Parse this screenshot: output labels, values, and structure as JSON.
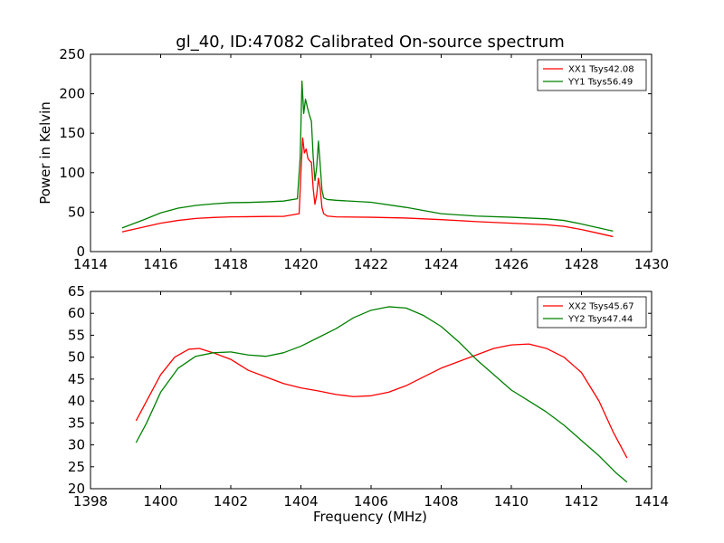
{
  "title": "gl_40, ID:47082 Calibrated On-source spectrum",
  "xlabel": "Frequency (MHz)",
  "chart_data": [
    {
      "type": "line",
      "title": "gl_40, ID:47082 Calibrated On-source spectrum",
      "xlabel": "",
      "ylabel": "Power in Kelvin",
      "xlim": [
        1414,
        1430
      ],
      "ylim": [
        0,
        250
      ],
      "xticks": [
        1414,
        1416,
        1418,
        1420,
        1422,
        1424,
        1426,
        1428,
        1430
      ],
      "yticks": [
        0,
        50,
        100,
        150,
        200,
        250
      ],
      "grid": false,
      "legend": "top-right",
      "series": [
        {
          "name": "XX1 Tsys42.08",
          "color": "#ff0000",
          "x": [
            1414.9,
            1415.5,
            1416,
            1416.5,
            1417,
            1417.5,
            1418,
            1418.5,
            1419,
            1419.5,
            1419.95,
            1420.0,
            1420.05,
            1420.1,
            1420.15,
            1420.2,
            1420.25,
            1420.3,
            1420.35,
            1420.4,
            1420.45,
            1420.5,
            1420.55,
            1420.6,
            1420.65,
            1420.75,
            1421,
            1422,
            1423,
            1424,
            1425,
            1426,
            1427,
            1427.5,
            1428,
            1428.5,
            1428.9
          ],
          "y": [
            25,
            31,
            36,
            39.5,
            42,
            43.2,
            44,
            44.2,
            44.5,
            44.6,
            48,
            100,
            144,
            125,
            130,
            118,
            115,
            113,
            80,
            60,
            72,
            93,
            80,
            56,
            48,
            45,
            44,
            43.5,
            42.5,
            40.5,
            38,
            36,
            34,
            32,
            28,
            23,
            19
          ]
        },
        {
          "name": "YY1 Tsys56.49",
          "color": "#008000",
          "x": [
            1414.9,
            1415.5,
            1416,
            1416.5,
            1417,
            1417.5,
            1418,
            1418.5,
            1419,
            1419.5,
            1419.9,
            1419.98,
            1420.03,
            1420.08,
            1420.13,
            1420.2,
            1420.25,
            1420.3,
            1420.35,
            1420.4,
            1420.45,
            1420.5,
            1420.55,
            1420.6,
            1420.65,
            1420.75,
            1421,
            1422,
            1423,
            1424,
            1425,
            1426,
            1427,
            1427.5,
            1428,
            1428.5,
            1428.9
          ],
          "y": [
            30,
            40,
            49,
            55,
            58.5,
            60.5,
            62,
            62.3,
            63,
            64,
            67,
            120,
            216,
            175,
            193,
            180,
            172,
            165,
            120,
            90,
            107,
            140,
            110,
            78,
            68,
            66,
            65,
            62.5,
            56,
            48,
            45,
            43.5,
            41.5,
            39.5,
            35,
            30,
            26
          ]
        }
      ]
    },
    {
      "type": "line",
      "title": "",
      "xlabel": "Frequency (MHz)",
      "ylabel": "",
      "xlim": [
        1398,
        1414
      ],
      "ylim": [
        20,
        65
      ],
      "xticks": [
        1398,
        1400,
        1402,
        1404,
        1406,
        1408,
        1410,
        1412,
        1414
      ],
      "yticks": [
        20,
        25,
        30,
        35,
        40,
        45,
        50,
        55,
        60,
        65
      ],
      "grid": false,
      "legend": "top-right",
      "series": [
        {
          "name": "XX2 Tsys45.67",
          "color": "#ff0000",
          "x": [
            1399.3,
            1399.6,
            1400,
            1400.4,
            1400.8,
            1401.1,
            1401.5,
            1402,
            1402.5,
            1403,
            1403.5,
            1404,
            1404.5,
            1405,
            1405.5,
            1406,
            1406.5,
            1407,
            1407.5,
            1408,
            1408.5,
            1409,
            1409.5,
            1410,
            1410.5,
            1411,
            1411.5,
            1412,
            1412.5,
            1412.9,
            1413.3
          ],
          "y": [
            35.5,
            40,
            46,
            50,
            51.8,
            52,
            51,
            49.5,
            47,
            45.5,
            44,
            43,
            42.3,
            41.5,
            41,
            41.2,
            42,
            43.5,
            45.5,
            47.5,
            49,
            50.5,
            52,
            52.8,
            53,
            52,
            50,
            46.5,
            40,
            33,
            27
          ]
        },
        {
          "name": "YY2 Tsys47.44",
          "color": "#008000",
          "x": [
            1399.3,
            1399.6,
            1400,
            1400.5,
            1401,
            1401.5,
            1402,
            1402.5,
            1403,
            1403.5,
            1404,
            1404.5,
            1405,
            1405.5,
            1406,
            1406.5,
            1407,
            1407.5,
            1408,
            1408.5,
            1409,
            1409.5,
            1410,
            1410.5,
            1411,
            1411.5,
            1412,
            1412.5,
            1413,
            1413.3
          ],
          "y": [
            30.5,
            35,
            42,
            47.5,
            50.2,
            51,
            51.2,
            50.5,
            50.2,
            51,
            52.5,
            54.5,
            56.5,
            59,
            60.7,
            61.5,
            61.2,
            59.5,
            57,
            53.5,
            49.5,
            46,
            42.5,
            40,
            37.5,
            34.5,
            31,
            27.5,
            23.5,
            21.5
          ]
        }
      ]
    }
  ]
}
